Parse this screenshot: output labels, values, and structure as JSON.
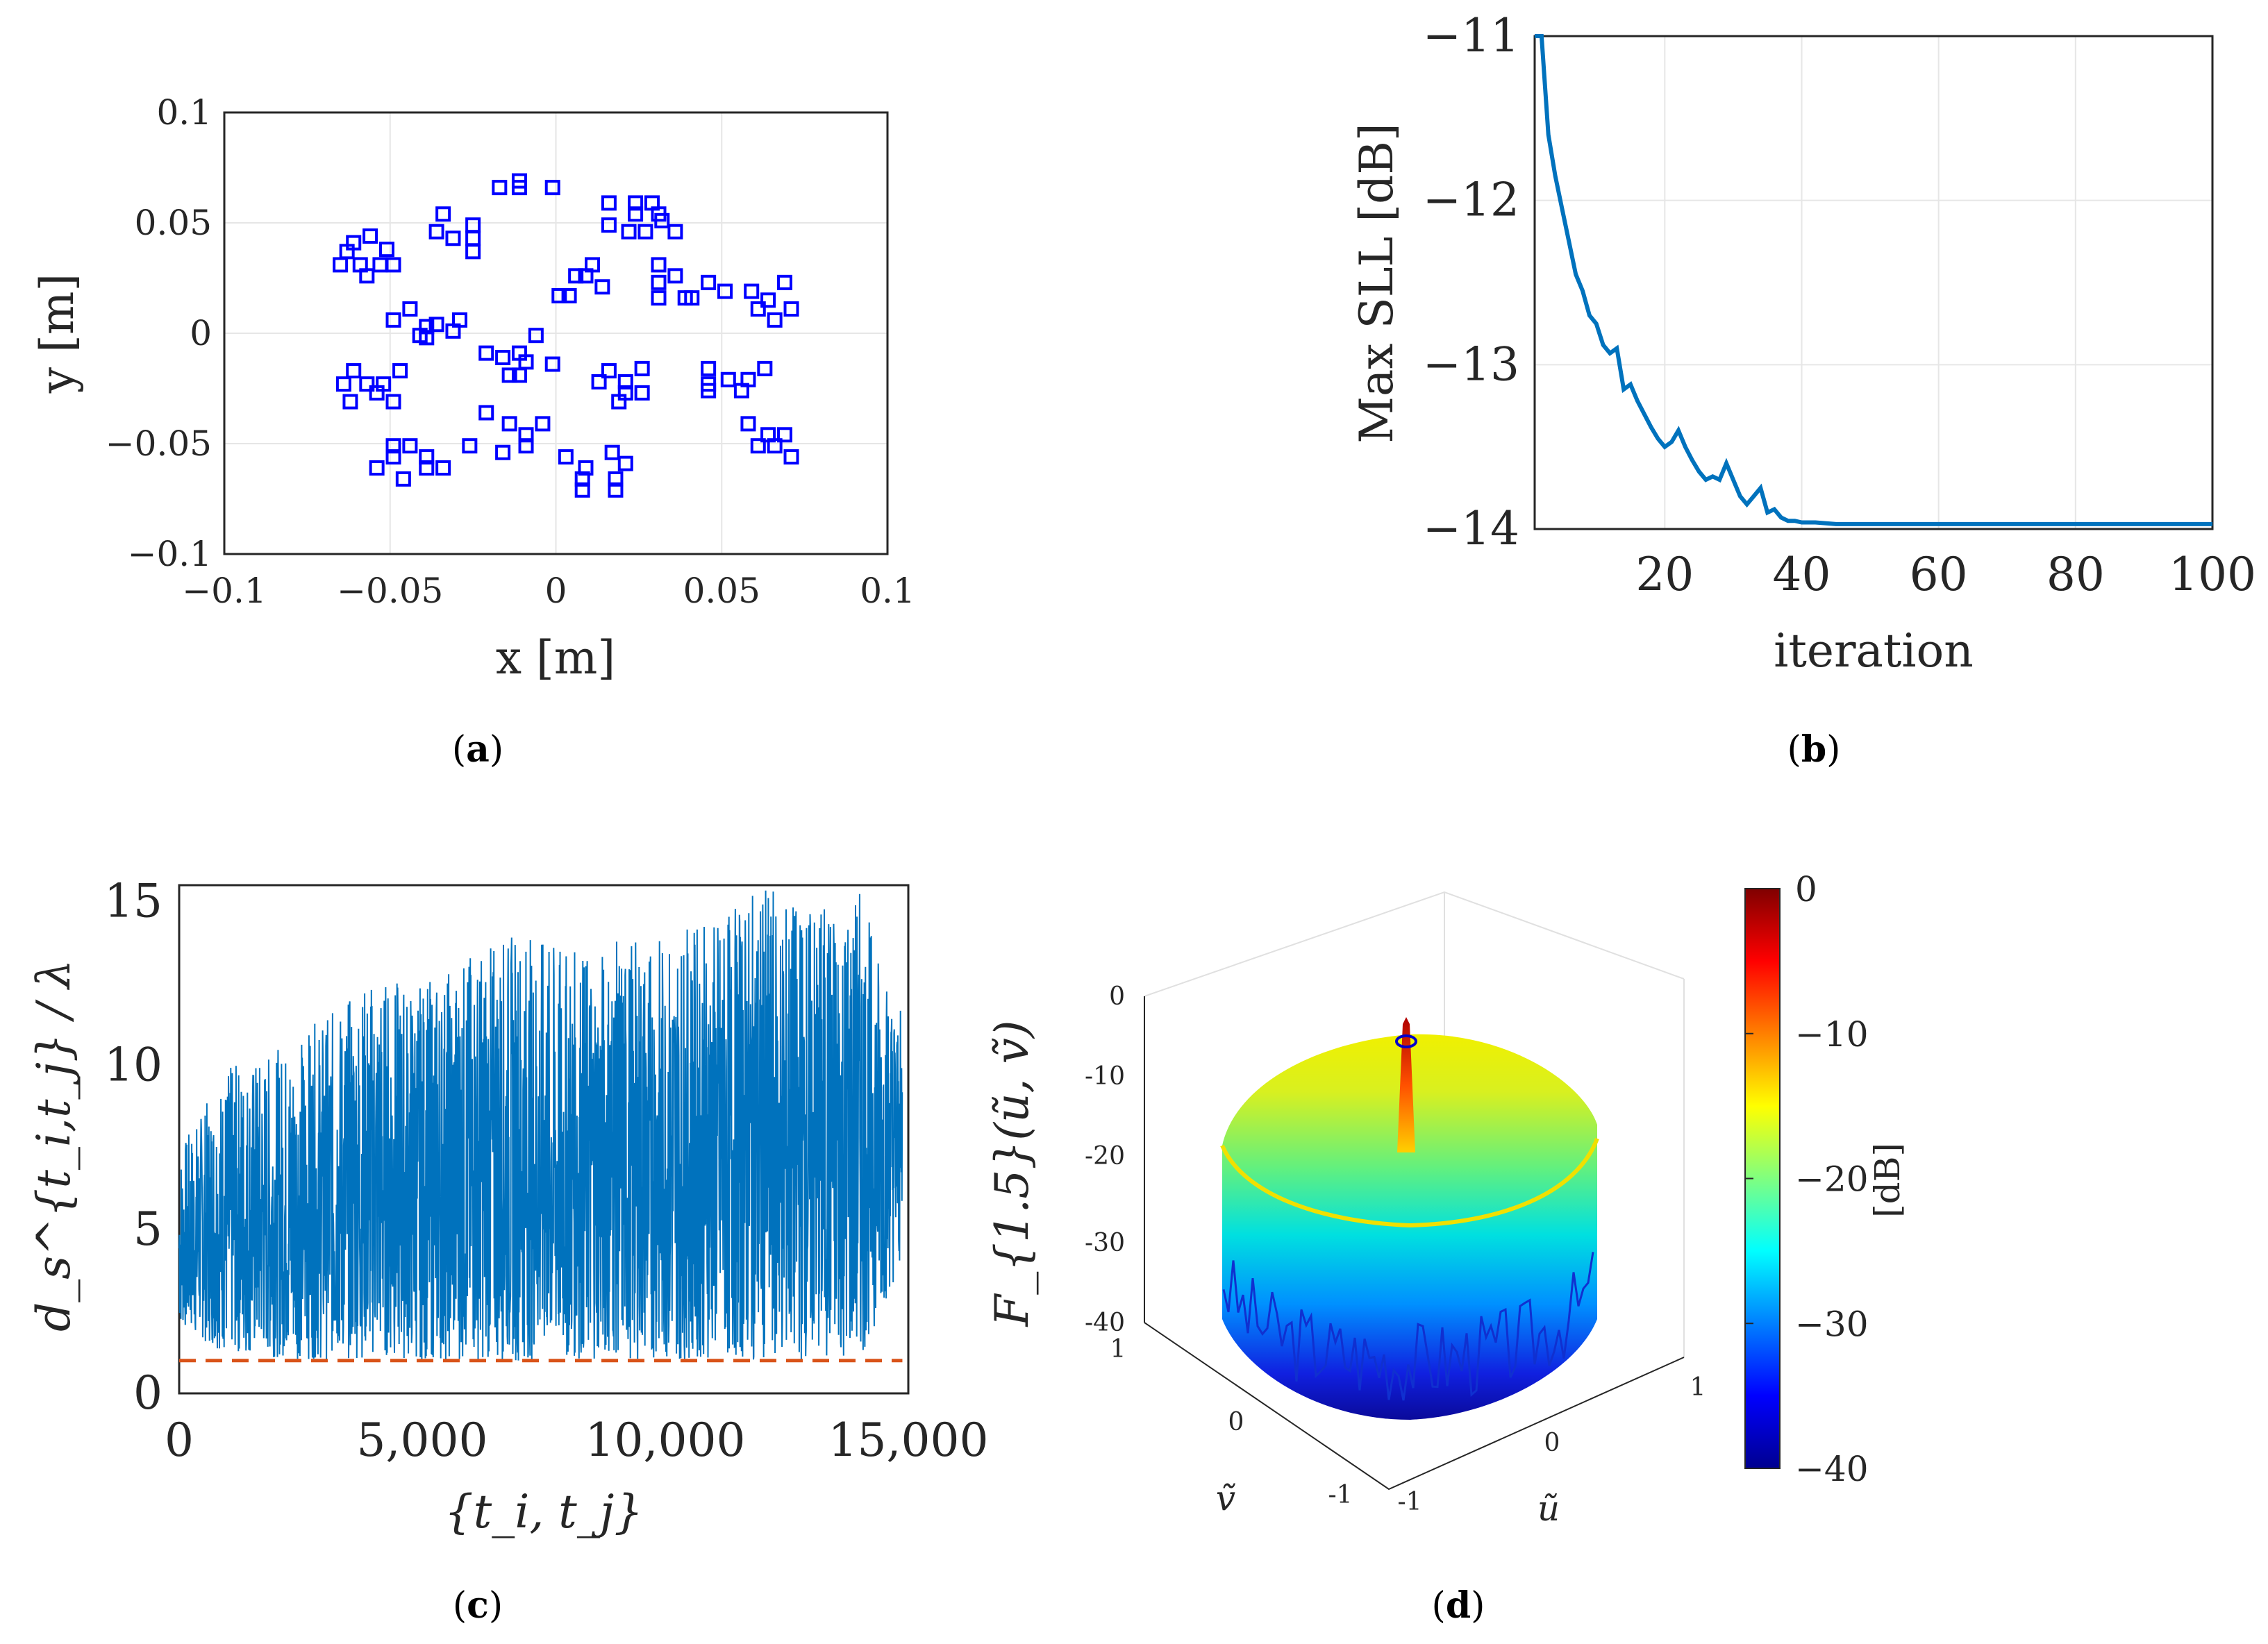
{
  "chart_data": [
    {
      "id": "a",
      "type": "scatter",
      "panel_label": "a",
      "xlabel": "x [m]",
      "ylabel": "y [m]",
      "xlim": [
        -0.1,
        0.1
      ],
      "ylim": [
        -0.1,
        0.1
      ],
      "xticks": [
        "−0.1",
        "−0.05",
        "0",
        "0.05",
        "0.1"
      ],
      "yticks": [
        "0.1",
        "0.05",
        "0",
        "−0.05",
        "−0.1"
      ],
      "grid": true,
      "marker_color": "#0000ff",
      "series": [
        {
          "marker": "square",
          "x": [
            -0.061,
            -0.056,
            -0.051,
            -0.063,
            -0.059,
            -0.053,
            -0.049,
            -0.065,
            -0.057,
            -0.034,
            -0.036,
            -0.031,
            -0.025,
            -0.025,
            -0.025,
            -0.017,
            -0.011,
            -0.011,
            -0.001,
            0.016,
            0.024,
            0.029,
            0.032,
            0.016,
            0.022,
            0.027,
            0.036,
            0.024,
            0.031,
            -0.049,
            -0.044,
            -0.039,
            -0.036,
            -0.041,
            -0.031,
            -0.029,
            -0.039,
            0.001,
            0.006,
            0.011,
            0.014,
            0.009,
            0.004,
            0.031,
            0.036,
            0.039,
            0.046,
            0.051,
            0.041,
            0.031,
            0.031,
            0.059,
            0.064,
            0.061,
            0.069,
            0.066,
            0.071,
            -0.064,
            -0.057,
            -0.061,
            -0.052,
            -0.047,
            -0.062,
            -0.054,
            -0.049,
            -0.021,
            -0.016,
            -0.009,
            -0.001,
            -0.011,
            -0.011,
            -0.006,
            -0.014,
            0.016,
            0.021,
            0.026,
            0.021,
            0.013,
            0.026,
            0.019,
            0.046,
            0.052,
            0.058,
            0.063,
            0.046,
            0.056,
            0.046,
            -0.049,
            -0.044,
            -0.039,
            -0.054,
            -0.046,
            -0.039,
            -0.034,
            -0.049,
            -0.021,
            -0.014,
            -0.009,
            -0.004,
            -0.026,
            -0.016,
            -0.009,
            0.003,
            0.009,
            0.017,
            0.021,
            0.008,
            0.018,
            0.008,
            0.018,
            0.058,
            0.064,
            0.069,
            0.071,
            0.061,
            0.066
          ],
          "y": [
            0.041,
            0.044,
            0.038,
            0.037,
            0.031,
            0.031,
            0.031,
            0.031,
            0.026,
            0.054,
            0.046,
            0.043,
            0.049,
            0.043,
            0.037,
            0.066,
            0.069,
            0.066,
            0.066,
            0.059,
            0.059,
            0.059,
            0.051,
            0.049,
            0.046,
            0.046,
            0.046,
            0.054,
            0.054,
            0.006,
            0.011,
            0.003,
            0.004,
            -0.001,
            0.001,
            0.006,
            -0.002,
            0.017,
            0.026,
            0.031,
            0.021,
            0.026,
            0.017,
            0.031,
            0.026,
            0.016,
            0.023,
            0.019,
            0.016,
            0.023,
            0.016,
            0.019,
            0.015,
            0.011,
            0.023,
            0.006,
            0.011,
            -0.023,
            -0.023,
            -0.017,
            -0.023,
            -0.017,
            -0.031,
            -0.027,
            -0.031,
            -0.009,
            -0.011,
            -0.013,
            -0.014,
            -0.019,
            -0.009,
            -0.001,
            -0.019,
            -0.017,
            -0.022,
            -0.016,
            -0.027,
            -0.022,
            -0.027,
            -0.031,
            -0.016,
            -0.021,
            -0.021,
            -0.016,
            -0.023,
            -0.026,
            -0.026,
            -0.051,
            -0.051,
            -0.056,
            -0.061,
            -0.066,
            -0.061,
            -0.061,
            -0.056,
            -0.036,
            -0.041,
            -0.046,
            -0.041,
            -0.051,
            -0.054,
            -0.051,
            -0.056,
            -0.061,
            -0.054,
            -0.059,
            -0.071,
            -0.071,
            -0.066,
            -0.066,
            -0.041,
            -0.046,
            -0.046,
            -0.056,
            -0.051,
            -0.051
          ]
        }
      ]
    },
    {
      "id": "b",
      "type": "line",
      "panel_label": "b",
      "xlabel": "iteration",
      "ylabel": "Max SLL [dB]",
      "xlim": [
        1,
        100
      ],
      "ylim": [
        -14,
        -11
      ],
      "xticks": [
        "20",
        "40",
        "60",
        "80",
        "100"
      ],
      "yticks": [
        "−11",
        "−12",
        "−13",
        "−14"
      ],
      "grid": true,
      "series": [
        {
          "color": "#0072bd",
          "x": [
            1,
            2,
            3,
            4,
            5,
            6,
            7,
            8,
            9,
            10,
            11,
            12,
            13,
            14,
            15,
            16,
            17,
            18,
            19,
            20,
            21,
            22,
            23,
            24,
            25,
            26,
            27,
            28,
            29,
            30,
            31,
            32,
            33,
            34,
            35,
            36,
            37,
            38,
            39,
            40,
            42,
            45,
            50,
            60,
            70,
            80,
            90,
            100
          ],
          "y": [
            -10.9,
            -10.95,
            -11.6,
            -11.85,
            -12.05,
            -12.25,
            -12.45,
            -12.55,
            -12.7,
            -12.75,
            -12.88,
            -12.93,
            -12.9,
            -13.15,
            -13.12,
            -13.22,
            -13.3,
            -13.38,
            -13.45,
            -13.5,
            -13.47,
            -13.4,
            -13.5,
            -13.58,
            -13.65,
            -13.7,
            -13.68,
            -13.7,
            -13.6,
            -13.7,
            -13.8,
            -13.85,
            -13.8,
            -13.75,
            -13.9,
            -13.88,
            -13.93,
            -13.95,
            -13.95,
            -13.96,
            -13.96,
            -13.97,
            -13.97,
            -13.97,
            -13.97,
            -13.97,
            -13.97,
            -13.97
          ]
        }
      ]
    },
    {
      "id": "c",
      "type": "line",
      "panel_label": "c",
      "xlabel": "{t_i, t_j}",
      "ylabel": "d_s^{t_i,t_j} / λ",
      "xlim": [
        0,
        15000
      ],
      "ylim": [
        0,
        15.5
      ],
      "xticks": [
        "0",
        "5,000",
        "10,000",
        "15,000"
      ],
      "yticks": [
        "15",
        "10",
        "5",
        "0"
      ],
      "grid": false,
      "n_points": 14878,
      "value_range": [
        0.95,
        15.4
      ],
      "series": [
        {
          "color": "#0072bd",
          "envelope": [
            {
              "x": 0,
              "min": 2.0,
              "max": 7.5
            },
            {
              "x": 1000,
              "min": 1.2,
              "max": 10.0
            },
            {
              "x": 2000,
              "min": 1.1,
              "max": 10.5
            },
            {
              "x": 3000,
              "min": 1.0,
              "max": 11.5
            },
            {
              "x": 4000,
              "min": 1.1,
              "max": 12.8
            },
            {
              "x": 5000,
              "min": 1.0,
              "max": 12.5
            },
            {
              "x": 6000,
              "min": 1.0,
              "max": 13.5
            },
            {
              "x": 7000,
              "min": 1.0,
              "max": 14.2
            },
            {
              "x": 8000,
              "min": 1.0,
              "max": 13.5
            },
            {
              "x": 9000,
              "min": 1.1,
              "max": 13.8
            },
            {
              "x": 10000,
              "min": 1.0,
              "max": 14.0
            },
            {
              "x": 11000,
              "min": 1.1,
              "max": 14.5
            },
            {
              "x": 12000,
              "min": 1.0,
              "max": 15.4
            },
            {
              "x": 13000,
              "min": 1.0,
              "max": 15.0
            },
            {
              "x": 14000,
              "min": 1.0,
              "max": 15.4
            },
            {
              "x": 14878,
              "min": 4.0,
              "max": 11.5
            }
          ]
        },
        {
          "color": "#d95319",
          "style": "dashed",
          "x": [
            0,
            14878
          ],
          "y": [
            1.0,
            1.0
          ]
        }
      ]
    },
    {
      "id": "d",
      "type": "heatmap",
      "subtype": "3d-surface",
      "panel_label": "d",
      "zlabel": "F_{1.5}(ũ, ṽ)",
      "xlabel": "ũ",
      "ylabel": "ṽ",
      "zlim": [
        -40,
        0
      ],
      "zticks": [
        "0",
        "-10",
        "-20",
        "-30",
        "-40"
      ],
      "uticks": [
        "-1",
        "0",
        "1"
      ],
      "vticks": [
        "-1",
        "0",
        "1"
      ],
      "colorbar": {
        "label": "[dB]",
        "range": [
          -40,
          0
        ],
        "ticks": [
          "0",
          "−10",
          "−20",
          "−30",
          "−40"
        ],
        "colormap": "jet"
      },
      "mainlobe_peak_dB": 0,
      "sidelobe_level_dB": -14
    }
  ]
}
